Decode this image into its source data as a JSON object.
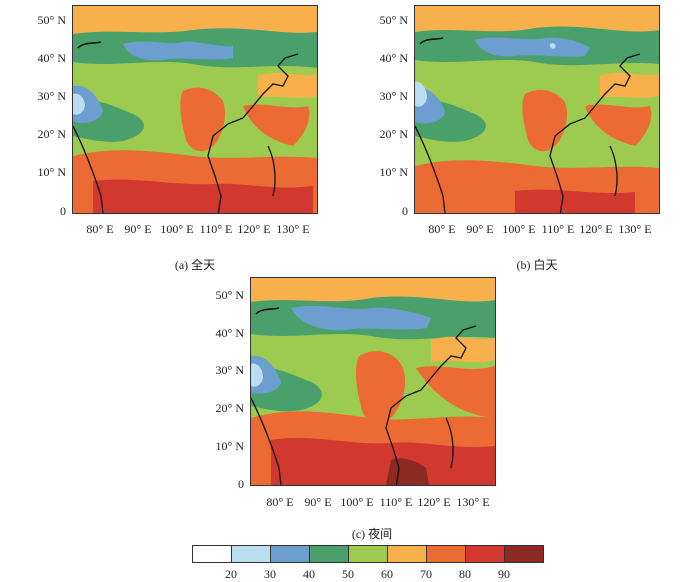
{
  "panels": [
    {
      "caption": "(a) 全天",
      "lat_labels": [
        "50° N",
        "40° N",
        "30° N",
        "20° N",
        "10° N",
        "0"
      ],
      "lon_labels": [
        "80° E",
        "90° E",
        "100° E",
        "110° E",
        "120° E",
        "130° E"
      ]
    },
    {
      "caption": "(b) 白天",
      "lat_labels": [
        "50° N",
        "40° N",
        "30° N",
        "20° N",
        "10° N",
        "0"
      ],
      "lon_labels": [
        "80° E",
        "90° E",
        "100° E",
        "110° E",
        "120° E",
        "130° E"
      ]
    },
    {
      "caption": "(c) 夜间",
      "lat_labels": [
        "50° N",
        "40° N",
        "30° N",
        "20° N",
        "10° N",
        "0"
      ],
      "lon_labels": [
        "80° E",
        "90° E",
        "100° E",
        "110° E",
        "120° E",
        "130° E"
      ]
    }
  ],
  "legend": {
    "labels": [
      "20",
      "30",
      "40",
      "50",
      "60",
      "70",
      "80",
      "90"
    ],
    "colors": [
      "#ffffff",
      "#b9def0",
      "#6c9fd0",
      "#4aa06a",
      "#9ccb50",
      "#f8b04c",
      "#ec6a33",
      "#d03830",
      "#8b2a22"
    ]
  }
}
